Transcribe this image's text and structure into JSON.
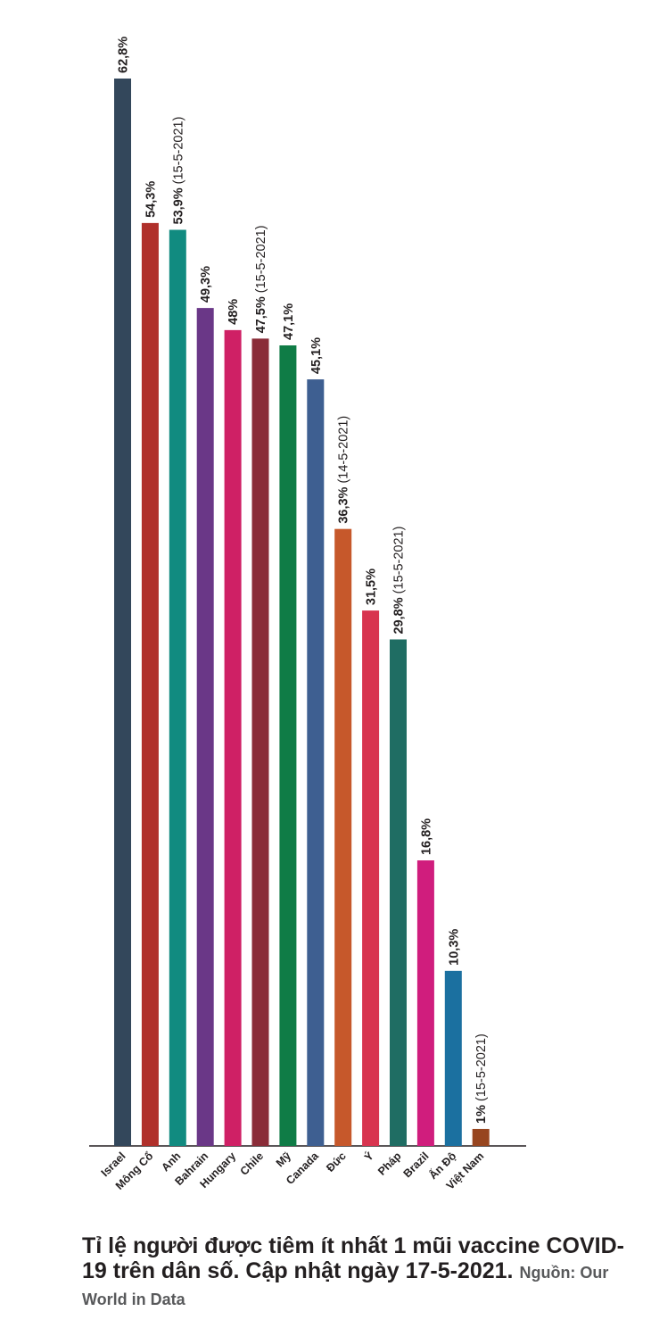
{
  "chart_data": {
    "type": "bar",
    "unit": "%",
    "ylim": [
      0,
      62.8
    ],
    "categories": [
      "Israel",
      "Mông Cổ",
      "Anh",
      "Bahrain",
      "Hungary",
      "Chile",
      "Mỹ",
      "Canada",
      "Đức",
      "Ý",
      "Pháp",
      "Brazil",
      "Ấn Độ",
      "Việt Nam"
    ],
    "values": [
      62.8,
      54.3,
      53.9,
      49.3,
      48,
      47.5,
      47.1,
      45.1,
      36.3,
      31.5,
      29.8,
      16.8,
      10.3,
      1
    ],
    "value_labels": [
      "62,8%",
      "54,3%",
      "53,9%",
      "49,3%",
      "48%",
      "47,5%",
      "47,1%",
      "45,1%",
      "36,3%",
      "31,5%",
      "29,8%",
      "16,8%",
      "10,3%",
      "1%"
    ],
    "date_notes": [
      "",
      "",
      "(15-5-2021)",
      "",
      "",
      "(15-5-2021)",
      "",
      "",
      "(14-5-2021)",
      "",
      "(15-5-2021)",
      "",
      "",
      "(15-5-2021)"
    ],
    "colors": [
      "#33475b",
      "#b0302b",
      "#118b80",
      "#6a3787",
      "#cf2065",
      "#8a2c38",
      "#0f7c46",
      "#3e5f91",
      "#c6582b",
      "#d8344f",
      "#1f6d63",
      "#d01d7d",
      "#1b70a0",
      "#97451f"
    ],
    "grid": false,
    "legend": "none"
  },
  "caption": {
    "title": "Tỉ lệ người được tiêm ít nhất 1 mũi vaccine COVID-19 trên dân số. Cập nhật ngày 17-5-2021.",
    "source": "Nguồn: Our World in Data"
  }
}
